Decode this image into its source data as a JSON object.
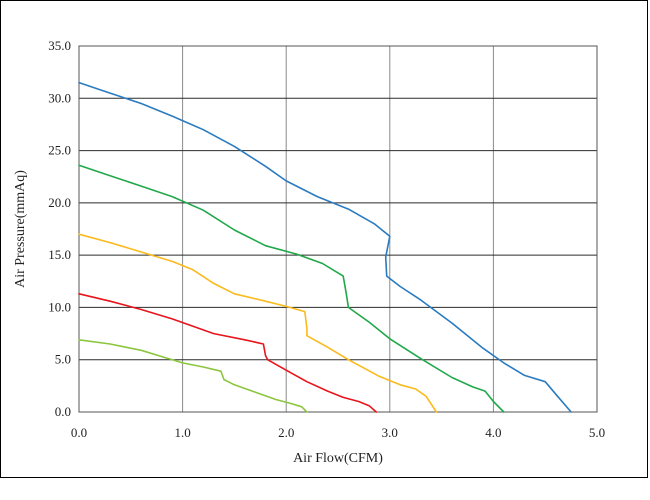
{
  "chart_data": {
    "type": "line",
    "title": "",
    "xlabel": "Air Flow(CFM)",
    "ylabel": "Air Pressure(mmAq)",
    "xlim": [
      0,
      5
    ],
    "ylim": [
      0,
      35
    ],
    "grid": true,
    "x_ticks": [
      "0.0",
      "1.0",
      "2.0",
      "3.0",
      "4.0",
      "5.0"
    ],
    "y_ticks": [
      "0.0",
      "5.0",
      "10.0",
      "15.0",
      "20.0",
      "25.0",
      "30.0",
      "35.0"
    ],
    "series": [
      {
        "color": "#2a7bc0",
        "points": [
          [
            0,
            31.5
          ],
          [
            0.3,
            30.5
          ],
          [
            0.6,
            29.5
          ],
          [
            0.9,
            28.3
          ],
          [
            1.2,
            27.0
          ],
          [
            1.5,
            25.4
          ],
          [
            1.8,
            23.5
          ],
          [
            2.0,
            22.1
          ],
          [
            2.3,
            20.6
          ],
          [
            2.6,
            19.4
          ],
          [
            2.85,
            18.0
          ],
          [
            3.0,
            16.8
          ],
          [
            2.96,
            14.8
          ],
          [
            2.97,
            13.0
          ],
          [
            3.1,
            12.0
          ],
          [
            3.3,
            10.7
          ],
          [
            3.6,
            8.5
          ],
          [
            3.9,
            6.1
          ],
          [
            4.1,
            4.7
          ],
          [
            4.3,
            3.5
          ],
          [
            4.5,
            2.9
          ],
          [
            4.62,
            1.5
          ],
          [
            4.75,
            0
          ]
        ]
      },
      {
        "color": "#20a84a",
        "points": [
          [
            0,
            23.6
          ],
          [
            0.3,
            22.6
          ],
          [
            0.6,
            21.6
          ],
          [
            0.9,
            20.6
          ],
          [
            1.2,
            19.3
          ],
          [
            1.5,
            17.4
          ],
          [
            1.8,
            15.9
          ],
          [
            2.1,
            15.1
          ],
          [
            2.35,
            14.2
          ],
          [
            2.55,
            13.0
          ],
          [
            2.58,
            11.3
          ],
          [
            2.6,
            10.0
          ],
          [
            2.8,
            8.6
          ],
          [
            3.0,
            7.0
          ],
          [
            3.3,
            5.1
          ],
          [
            3.6,
            3.3
          ],
          [
            3.8,
            2.4
          ],
          [
            3.92,
            2.0
          ],
          [
            4.0,
            1.0
          ],
          [
            4.1,
            0
          ]
        ]
      },
      {
        "color": "#fbba1d",
        "points": [
          [
            0,
            17.0
          ],
          [
            0.3,
            16.2
          ],
          [
            0.6,
            15.3
          ],
          [
            0.9,
            14.4
          ],
          [
            1.1,
            13.6
          ],
          [
            1.3,
            12.3
          ],
          [
            1.5,
            11.3
          ],
          [
            1.8,
            10.6
          ],
          [
            2.0,
            10.1
          ],
          [
            2.18,
            9.6
          ],
          [
            2.2,
            8.0
          ],
          [
            2.2,
            7.3
          ],
          [
            2.4,
            6.2
          ],
          [
            2.6,
            5.0
          ],
          [
            2.9,
            3.4
          ],
          [
            3.1,
            2.6
          ],
          [
            3.25,
            2.2
          ],
          [
            3.35,
            1.5
          ],
          [
            3.45,
            0
          ]
        ]
      },
      {
        "color": "#e8141c",
        "points": [
          [
            0,
            11.3
          ],
          [
            0.3,
            10.6
          ],
          [
            0.6,
            9.8
          ],
          [
            0.9,
            8.9
          ],
          [
            1.1,
            8.2
          ],
          [
            1.3,
            7.5
          ],
          [
            1.6,
            6.9
          ],
          [
            1.78,
            6.5
          ],
          [
            1.8,
            5.4
          ],
          [
            1.82,
            5.0
          ],
          [
            2.0,
            4.0
          ],
          [
            2.2,
            2.9
          ],
          [
            2.4,
            2.0
          ],
          [
            2.55,
            1.4
          ],
          [
            2.7,
            1.0
          ],
          [
            2.8,
            0.6
          ],
          [
            2.87,
            0
          ]
        ]
      },
      {
        "color": "#8cc63f",
        "points": [
          [
            0,
            6.9
          ],
          [
            0.3,
            6.5
          ],
          [
            0.6,
            5.9
          ],
          [
            0.8,
            5.3
          ],
          [
            1.0,
            4.7
          ],
          [
            1.2,
            4.3
          ],
          [
            1.37,
            3.9
          ],
          [
            1.4,
            3.1
          ],
          [
            1.5,
            2.6
          ],
          [
            1.7,
            1.9
          ],
          [
            1.9,
            1.2
          ],
          [
            2.05,
            0.8
          ],
          [
            2.15,
            0.5
          ],
          [
            2.2,
            0
          ]
        ]
      }
    ]
  }
}
